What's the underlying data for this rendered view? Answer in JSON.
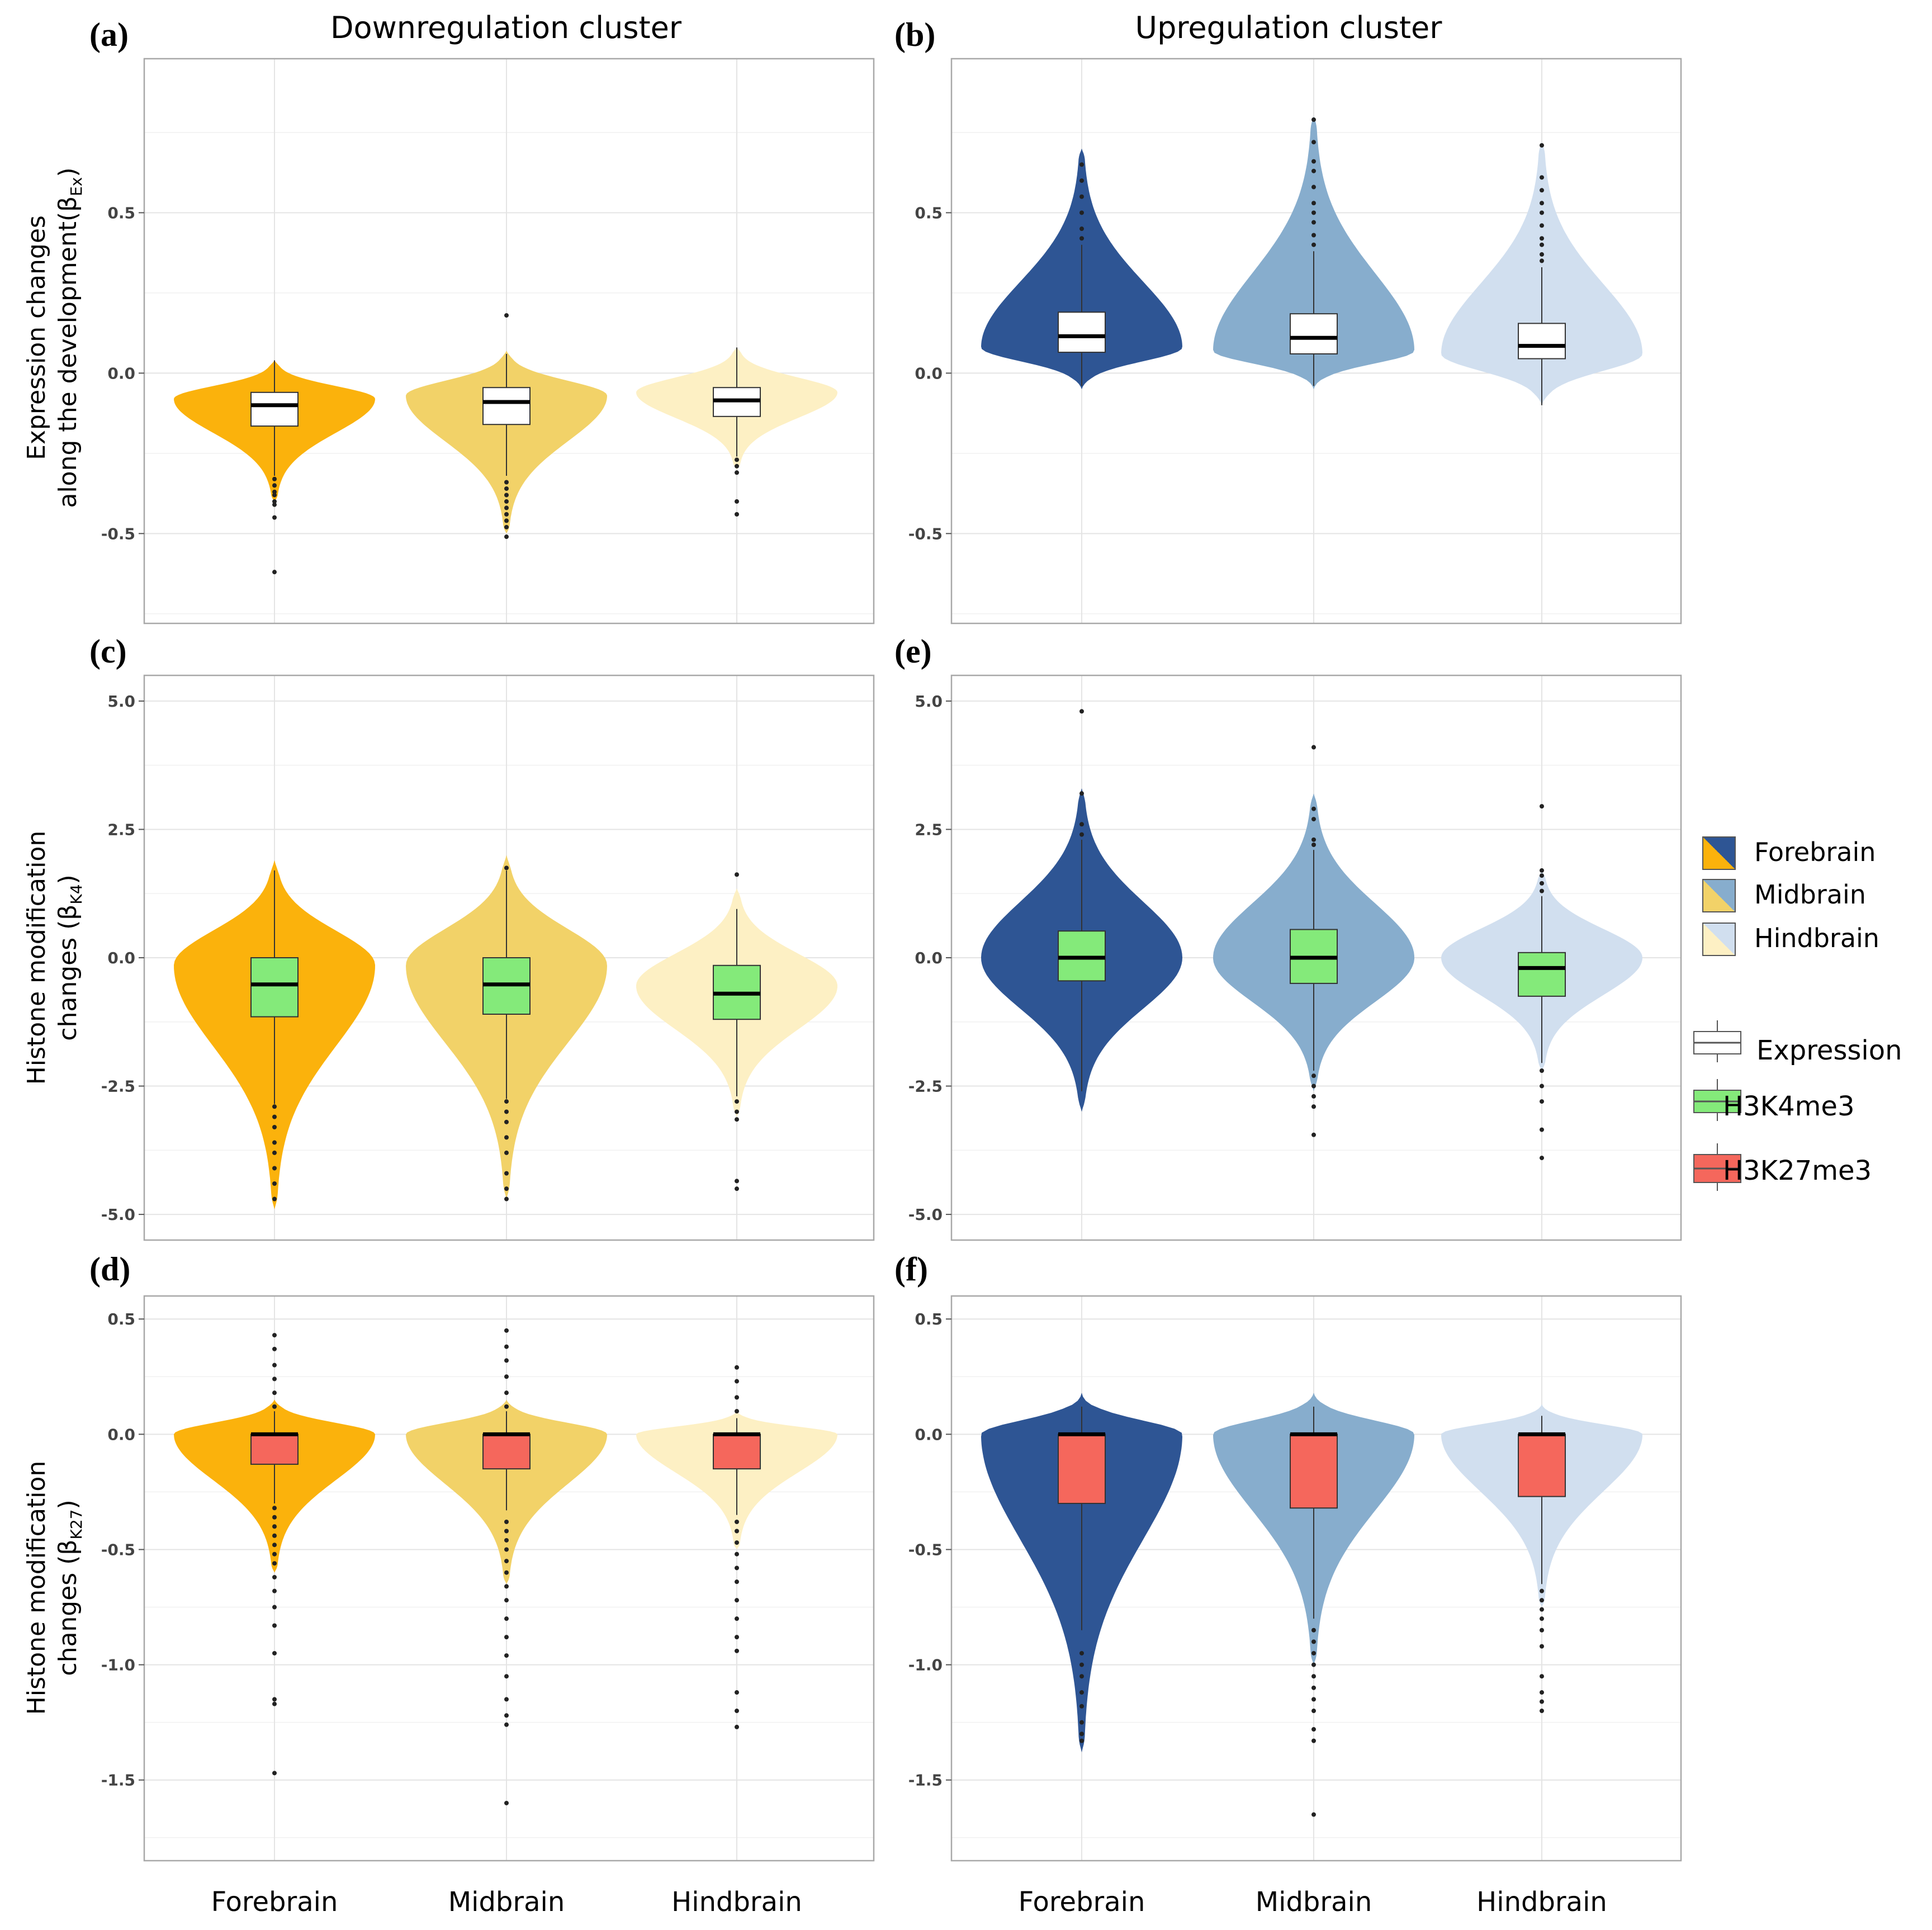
{
  "figure": {
    "col_titles": [
      "Downregulation cluster",
      "Upregulation cluster"
    ],
    "x_categories": [
      "Forebrain",
      "Midbrain",
      "Hindbrain"
    ],
    "ylabels": [
      {
        "line1": "Expression changes",
        "line2": "along the development(β",
        "sub": "Ex",
        "close": ")"
      },
      {
        "line1": "Histone modification",
        "line2": "changes (β",
        "sub": "K4",
        "close": ")"
      },
      {
        "line1": "Histone modification",
        "line2": "changes (β",
        "sub": "K27",
        "close": ")"
      }
    ],
    "legend": {
      "regions": [
        "Forebrain",
        "Midbrain",
        "Hindbrain"
      ],
      "marks": [
        "Expression",
        "H3K4me3",
        "H3K27me3"
      ]
    },
    "colors": {
      "down": [
        "#FBB20C",
        "#F2D268",
        "#FDF0C4"
      ],
      "up": [
        "#2E5594",
        "#87ADCD",
        "#D1DFEF"
      ],
      "expression_box": "#FFFFFF",
      "k4_box": "#84EA7A",
      "k27_box": "#F5675C"
    }
  },
  "chart_data": [
    {
      "panel": "(a)",
      "type": "violin",
      "cluster": "Downregulation cluster",
      "ylim": [
        -0.78,
        0.98
      ],
      "yticks": [
        "0.5",
        "0.0",
        "-0.5"
      ],
      "ytick_values": [
        0.5,
        0.0,
        -0.5
      ],
      "series": [
        {
          "name": "Forebrain",
          "q1": -0.165,
          "median": -0.1,
          "q3": -0.06,
          "whisker_low": -0.32,
          "whisker_high": 0.04,
          "ymin": -0.4,
          "ymax": 0.04,
          "mode": -0.08,
          "outliers": [
            -0.33,
            -0.35,
            -0.37,
            -0.38,
            -0.4,
            -0.41,
            -0.45,
            -0.62
          ]
        },
        {
          "name": "Midbrain",
          "q1": -0.16,
          "median": -0.09,
          "q3": -0.045,
          "whisker_low": -0.32,
          "whisker_high": 0.06,
          "ymin": -0.5,
          "ymax": 0.07,
          "mode": -0.07,
          "outliers": [
            -0.34,
            -0.36,
            -0.38,
            -0.4,
            -0.42,
            -0.44,
            -0.46,
            -0.48,
            -0.51,
            0.18
          ]
        },
        {
          "name": "Hindbrain",
          "q1": -0.135,
          "median": -0.085,
          "q3": -0.045,
          "whisker_low": -0.26,
          "whisker_high": 0.08,
          "ymin": -0.3,
          "ymax": 0.08,
          "mode": -0.06,
          "outliers": [
            -0.27,
            -0.29,
            -0.31,
            -0.4,
            -0.44
          ]
        }
      ]
    },
    {
      "panel": "(b)",
      "type": "violin",
      "cluster": "Upregulation cluster",
      "ylim": [
        -0.78,
        0.98
      ],
      "yticks": [
        "0.5",
        "0.0",
        "-0.5"
      ],
      "ytick_values": [
        0.5,
        0.0,
        -0.5
      ],
      "series": [
        {
          "name": "Forebrain",
          "q1": 0.065,
          "median": 0.115,
          "q3": 0.19,
          "whisker_low": -0.04,
          "whisker_high": 0.4,
          "ymin": -0.05,
          "ymax": 0.7,
          "mode": 0.08,
          "outliers": [
            0.42,
            0.45,
            0.5,
            0.55,
            0.6,
            0.65
          ]
        },
        {
          "name": "Midbrain",
          "q1": 0.06,
          "median": 0.11,
          "q3": 0.185,
          "whisker_low": -0.04,
          "whisker_high": 0.38,
          "ymin": -0.05,
          "ymax": 0.8,
          "mode": 0.07,
          "outliers": [
            0.4,
            0.43,
            0.47,
            0.5,
            0.53,
            0.58,
            0.63,
            0.66,
            0.72,
            0.79
          ]
        },
        {
          "name": "Hindbrain",
          "q1": 0.045,
          "median": 0.085,
          "q3": 0.155,
          "whisker_low": -0.1,
          "whisker_high": 0.33,
          "ymin": -0.1,
          "ymax": 0.72,
          "mode": 0.06,
          "outliers": [
            0.35,
            0.37,
            0.4,
            0.42,
            0.46,
            0.5,
            0.53,
            0.57,
            0.61,
            0.71
          ]
        }
      ]
    },
    {
      "panel": "(c)",
      "type": "violin",
      "cluster": "Downregulation cluster",
      "ylim": [
        -5.5,
        5.5
      ],
      "yticks": [
        "5.0",
        "2.5",
        "0.0",
        "-2.5",
        "-5.0"
      ],
      "ytick_values": [
        5.0,
        2.5,
        0.0,
        -2.5,
        -5.0
      ],
      "series": [
        {
          "name": "Forebrain",
          "q1": -1.15,
          "median": -0.52,
          "q3": 0.0,
          "whisker_low": -2.85,
          "whisker_high": 1.7,
          "ymin": -4.9,
          "ymax": 1.9,
          "mode": -0.15,
          "outliers": [
            -2.9,
            -3.1,
            -3.3,
            -3.6,
            -3.8,
            -4.1,
            -4.4,
            -4.7
          ]
        },
        {
          "name": "Midbrain",
          "q1": -1.1,
          "median": -0.52,
          "q3": 0.0,
          "whisker_low": -2.75,
          "whisker_high": 1.7,
          "ymin": -4.7,
          "ymax": 2.0,
          "mode": -0.15,
          "outliers": [
            -2.8,
            -3.0,
            -3.2,
            -3.5,
            -3.8,
            -4.2,
            -4.5,
            -4.7,
            1.75
          ]
        },
        {
          "name": "Hindbrain",
          "q1": -1.2,
          "median": -0.7,
          "q3": -0.15,
          "whisker_low": -2.7,
          "whisker_high": 0.95,
          "ymin": -3.1,
          "ymax": 1.35,
          "mode": -0.55,
          "outliers": [
            -2.8,
            -3.0,
            -3.15,
            -4.35,
            -4.5,
            1.62
          ]
        }
      ]
    },
    {
      "panel": "(e)",
      "type": "violin",
      "cluster": "Upregulation cluster",
      "ylim": [
        -5.5,
        5.5
      ],
      "yticks": [
        "5.0",
        "2.5",
        "0.0",
        "-2.5",
        "-5.0"
      ],
      "ytick_values": [
        5.0,
        2.5,
        0.0,
        -2.5,
        -5.0
      ],
      "series": [
        {
          "name": "Forebrain",
          "q1": -0.45,
          "median": 0.0,
          "q3": 0.52,
          "whisker_low": -2.6,
          "whisker_high": 2.3,
          "ymin": -3.0,
          "ymax": 3.3,
          "mode": 0.0,
          "outliers": [
            2.4,
            2.6,
            3.2,
            4.8
          ]
        },
        {
          "name": "Midbrain",
          "q1": -0.5,
          "median": 0.0,
          "q3": 0.55,
          "whisker_low": -2.2,
          "whisker_high": 2.1,
          "ymin": -2.6,
          "ymax": 3.2,
          "mode": 0.0,
          "outliers": [
            -2.3,
            -2.5,
            -2.7,
            -2.9,
            -3.45,
            2.2,
            2.3,
            2.7,
            2.9,
            4.1
          ]
        },
        {
          "name": "Hindbrain",
          "q1": -0.75,
          "median": -0.2,
          "q3": 0.1,
          "whisker_low": -2.05,
          "whisker_high": 1.2,
          "ymin": -2.2,
          "ymax": 1.7,
          "mode": 0.0,
          "outliers": [
            -2.2,
            -2.5,
            -2.8,
            -3.35,
            -3.9,
            1.3,
            1.45,
            1.6,
            1.7,
            2.95
          ]
        }
      ]
    },
    {
      "panel": "(d)",
      "type": "violin",
      "cluster": "Downregulation cluster",
      "ylim": [
        -1.85,
        0.6
      ],
      "yticks": [
        "0.5",
        "0.0",
        "-0.5",
        "-1.0",
        "-1.5"
      ],
      "ytick_values": [
        0.5,
        0.0,
        -0.5,
        -1.0,
        -1.5
      ],
      "series": [
        {
          "name": "Forebrain",
          "q1": -0.13,
          "median": 0.0,
          "q3": 0.0,
          "whisker_low": -0.3,
          "whisker_high": 0.1,
          "ymin": -0.6,
          "ymax": 0.15,
          "mode": 0.0,
          "outliers": [
            -0.32,
            -0.36,
            -0.4,
            -0.44,
            -0.48,
            -0.52,
            -0.56,
            -0.62,
            -0.68,
            -0.75,
            -0.83,
            -0.95,
            -1.15,
            -1.17,
            -1.47,
            0.12,
            0.18,
            0.24,
            0.3,
            0.37,
            0.43
          ]
        },
        {
          "name": "Midbrain",
          "q1": -0.15,
          "median": 0.0,
          "q3": 0.0,
          "whisker_low": -0.33,
          "whisker_high": 0.1,
          "ymin": -0.65,
          "ymax": 0.15,
          "mode": 0.0,
          "outliers": [
            -0.38,
            -0.42,
            -0.46,
            -0.5,
            -0.55,
            -0.6,
            -0.66,
            -0.72,
            -0.8,
            -0.88,
            -0.96,
            -1.05,
            -1.15,
            -1.22,
            -1.26,
            -1.6,
            0.12,
            0.18,
            0.25,
            0.32,
            0.38,
            0.45
          ]
        },
        {
          "name": "Hindbrain",
          "q1": -0.15,
          "median": 0.0,
          "q3": 0.0,
          "whisker_low": -0.35,
          "whisker_high": 0.07,
          "ymin": -0.5,
          "ymax": 0.1,
          "mode": 0.0,
          "outliers": [
            -0.38,
            -0.42,
            -0.47,
            -0.52,
            -0.58,
            -0.64,
            -0.72,
            -0.8,
            -0.88,
            -0.94,
            -1.12,
            -1.2,
            -1.27,
            0.1,
            0.16,
            0.23,
            0.29
          ]
        }
      ]
    },
    {
      "panel": "(f)",
      "type": "violin",
      "cluster": "Upregulation cluster",
      "ylim": [
        -1.85,
        0.6
      ],
      "yticks": [
        "0.5",
        "0.0",
        "-0.5",
        "-1.0",
        "-1.5"
      ],
      "ytick_values": [
        0.5,
        0.0,
        -0.5,
        -1.0,
        -1.5
      ],
      "series": [
        {
          "name": "Forebrain",
          "q1": -0.3,
          "median": 0.0,
          "q3": 0.0,
          "whisker_low": -0.85,
          "whisker_high": 0.12,
          "ymin": -1.38,
          "ymax": 0.18,
          "mode": 0.0,
          "outliers": [
            -0.95,
            -1.0,
            -1.05,
            -1.12,
            -1.18,
            -1.25,
            -1.3,
            -1.33
          ]
        },
        {
          "name": "Midbrain",
          "q1": -0.32,
          "median": 0.0,
          "q3": 0.0,
          "whisker_low": -0.8,
          "whisker_high": 0.12,
          "ymin": -1.0,
          "ymax": 0.18,
          "mode": 0.0,
          "outliers": [
            -0.85,
            -0.9,
            -0.95,
            -1.0,
            -1.05,
            -1.1,
            -1.15,
            -1.2,
            -1.28,
            -1.33,
            -1.65
          ]
        },
        {
          "name": "Hindbrain",
          "q1": -0.27,
          "median": 0.0,
          "q3": 0.0,
          "whisker_low": -0.65,
          "whisker_high": 0.08,
          "ymin": -0.75,
          "ymax": 0.13,
          "mode": 0.0,
          "outliers": [
            -0.68,
            -0.72,
            -0.76,
            -0.8,
            -0.85,
            -0.92,
            -1.05,
            -1.12,
            -1.16,
            -1.2
          ]
        }
      ]
    }
  ]
}
